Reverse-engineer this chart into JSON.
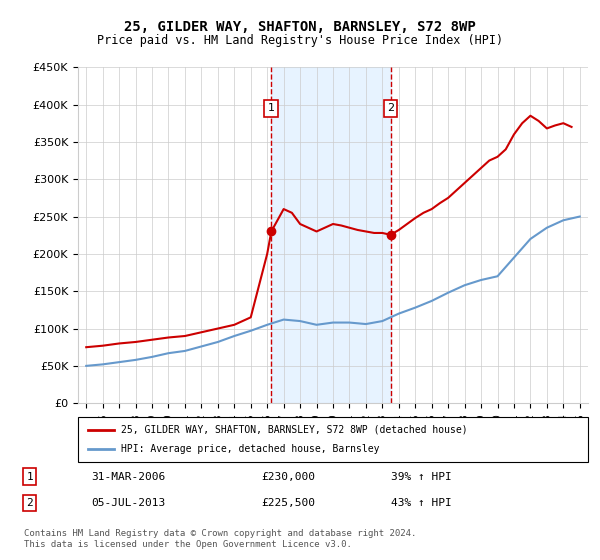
{
  "title": "25, GILDER WAY, SHAFTON, BARNSLEY, S72 8WP",
  "subtitle": "Price paid vs. HM Land Registry's House Price Index (HPI)",
  "legend_label_red": "25, GILDER WAY, SHAFTON, BARNSLEY, S72 8WP (detached house)",
  "legend_label_blue": "HPI: Average price, detached house, Barnsley",
  "transaction1_label": "1",
  "transaction1_date": "31-MAR-2006",
  "transaction1_price": "£230,000",
  "transaction1_hpi": "39% ↑ HPI",
  "transaction2_label": "2",
  "transaction2_date": "05-JUL-2013",
  "transaction2_price": "£225,500",
  "transaction2_hpi": "43% ↑ HPI",
  "footnote": "Contains HM Land Registry data © Crown copyright and database right 2024.\nThis data is licensed under the Open Government Licence v3.0.",
  "background_color": "#ffffff",
  "plot_bg_color": "#ffffff",
  "grid_color": "#cccccc",
  "red_color": "#cc0000",
  "blue_color": "#6699cc",
  "shade_color": "#ddeeff",
  "marker1_year": 2006.25,
  "marker2_year": 2013.5,
  "ylim": [
    0,
    450000
  ],
  "xlim_start": 1994.5,
  "xlim_end": 2025.5,
  "red_years": [
    1995,
    1996,
    1997,
    1998,
    1999,
    2000,
    2001,
    2002,
    2003,
    2004,
    2005,
    2006,
    2006.25,
    2007,
    2007.5,
    2008,
    2008.5,
    2009,
    2009.5,
    2010,
    2010.5,
    2011,
    2011.5,
    2012,
    2012.5,
    2013,
    2013.5,
    2014,
    2014.5,
    2015,
    2015.5,
    2016,
    2016.5,
    2017,
    2017.5,
    2018,
    2018.5,
    2019,
    2019.5,
    2020,
    2020.5,
    2021,
    2021.5,
    2022,
    2022.5,
    2023,
    2023.5,
    2024,
    2024.5
  ],
  "red_values": [
    75000,
    77000,
    80000,
    82000,
    85000,
    88000,
    90000,
    95000,
    100000,
    105000,
    115000,
    200000,
    230000,
    260000,
    255000,
    240000,
    235000,
    230000,
    235000,
    240000,
    238000,
    235000,
    232000,
    230000,
    228000,
    228000,
    225500,
    232000,
    240000,
    248000,
    255000,
    260000,
    268000,
    275000,
    285000,
    295000,
    305000,
    315000,
    325000,
    330000,
    340000,
    360000,
    375000,
    385000,
    378000,
    368000,
    372000,
    375000,
    370000
  ],
  "blue_years": [
    1995,
    1996,
    1997,
    1998,
    1999,
    2000,
    2001,
    2002,
    2003,
    2004,
    2005,
    2006,
    2007,
    2008,
    2009,
    2010,
    2011,
    2012,
    2013,
    2014,
    2015,
    2016,
    2017,
    2018,
    2019,
    2020,
    2021,
    2022,
    2023,
    2024,
    2025
  ],
  "blue_values": [
    50000,
    52000,
    55000,
    58000,
    62000,
    67000,
    70000,
    76000,
    82000,
    90000,
    97000,
    105000,
    112000,
    110000,
    105000,
    108000,
    108000,
    106000,
    110000,
    120000,
    128000,
    137000,
    148000,
    158000,
    165000,
    170000,
    195000,
    220000,
    235000,
    245000,
    250000
  ]
}
